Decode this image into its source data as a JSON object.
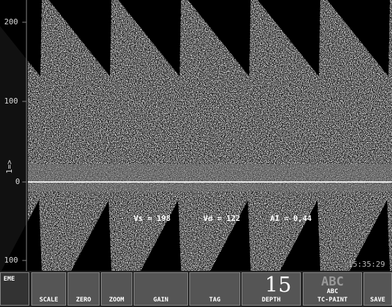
{
  "axis": {
    "labels": [
      "200",
      "100",
      "0",
      "100"
    ],
    "marker": "1=>"
  },
  "measurements": [
    "Vs = 198",
    "Vd = 122",
    "AI = 0,44"
  ],
  "time": "15:35:29",
  "toolbar": {
    "mode": "EME",
    "buttons": [
      "SCALE",
      "ZERO",
      "ZOOM",
      "GAIN",
      "TAG"
    ],
    "depth": {
      "value": "15",
      "label": "DEPTH"
    },
    "paint": {
      "icon": "ABC",
      "sub": "ABC",
      "label": "TC-PAINT"
    },
    "save": "SAVE"
  }
}
